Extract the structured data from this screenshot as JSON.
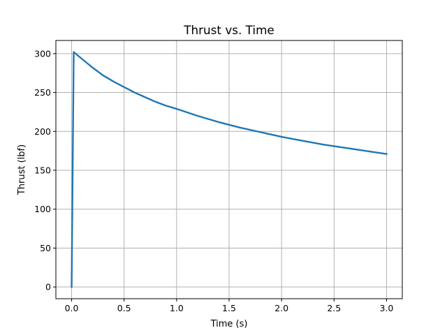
{
  "chart_data": {
    "type": "line",
    "title": "Thrust vs. Time",
    "xlabel": "Time (s)",
    "ylabel": "Thrust (lbf)",
    "xlim": [
      -0.15,
      3.15
    ],
    "ylim": [
      -15.1,
      316.9
    ],
    "xticks": [
      0.0,
      0.5,
      1.0,
      1.5,
      2.0,
      2.5,
      3.0
    ],
    "xtick_labels": [
      "0.0",
      "0.5",
      "1.0",
      "1.5",
      "2.0",
      "2.5",
      "3.0"
    ],
    "yticks": [
      0,
      50,
      100,
      150,
      200,
      250,
      300
    ],
    "ytick_labels": [
      "0",
      "50",
      "100",
      "150",
      "200",
      "250",
      "300"
    ],
    "grid": true,
    "legend": "none",
    "series": [
      {
        "color": "#1f77b4",
        "x": [
          0.0,
          0.02,
          0.1,
          0.2,
          0.3,
          0.4,
          0.5,
          0.6,
          0.7,
          0.8,
          0.9,
          1.0,
          1.2,
          1.4,
          1.6,
          1.8,
          2.0,
          2.2,
          2.4,
          2.6,
          2.8,
          3.0
        ],
        "y": [
          0,
          302,
          293,
          282,
          272,
          264,
          257,
          250,
          244,
          238,
          233,
          229,
          220,
          212,
          205,
          199,
          193,
          188,
          183,
          179,
          175,
          171
        ]
      }
    ]
  }
}
